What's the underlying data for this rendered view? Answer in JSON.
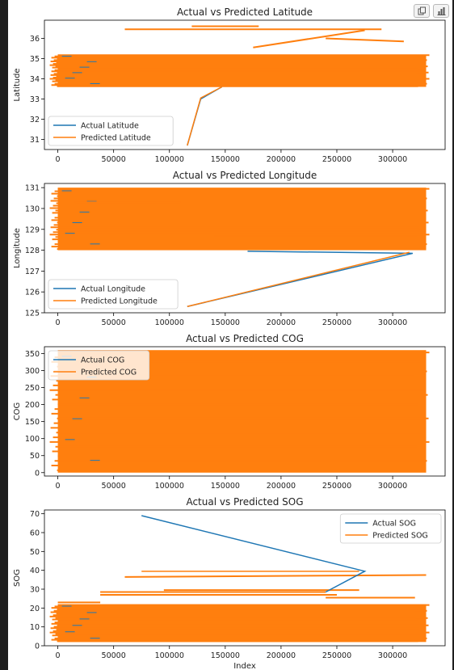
{
  "toolbar": {
    "icons": [
      "copy-icon",
      "chart-icon"
    ]
  },
  "colors": {
    "actual": "#1f77b4",
    "predicted": "#ff7f0e"
  },
  "chart_data": [
    {
      "type": "line",
      "title": "Actual vs Predicted Latitude",
      "xlabel": "",
      "ylabel": "Latitude",
      "xlim": [
        -12000,
        347000
      ],
      "ylim": [
        30.5,
        36.9
      ],
      "xticks": [
        0,
        50000,
        100000,
        150000,
        200000,
        250000,
        300000
      ],
      "yticks": [
        31,
        32,
        33,
        34,
        35,
        36
      ],
      "legend": "lower-left",
      "grid": false,
      "band": {
        "x": [
          0,
          330000
        ],
        "y": [
          33.6,
          35.2
        ]
      },
      "series": [
        {
          "name": "Actual Latitude",
          "x": [
            116000,
            128000,
            147000
          ],
          "y": [
            30.7,
            33.0,
            33.6
          ]
        },
        {
          "name": "Predicted Latitude",
          "x": [
            116000,
            128000,
            147000
          ],
          "y": [
            30.7,
            33.05,
            33.6
          ]
        }
      ],
      "extra_lines": [
        [
          60000,
          36.45,
          290000,
          36.45
        ],
        [
          120000,
          36.6,
          180000,
          36.6
        ],
        [
          240000,
          36.0,
          310000,
          35.85
        ],
        [
          175000,
          35.55,
          275000,
          36.4
        ],
        [
          20000,
          33.7,
          170000,
          33.7
        ],
        [
          150000,
          34.1,
          180000,
          34.1
        ]
      ]
    },
    {
      "type": "line",
      "title": "Actual vs Predicted Longitude",
      "xlabel": "",
      "ylabel": "Longitude",
      "xlim": [
        -12000,
        347000
      ],
      "ylim": [
        125.0,
        131.2
      ],
      "xticks": [
        0,
        50000,
        100000,
        150000,
        200000,
        250000,
        300000
      ],
      "yticks": [
        125,
        126,
        127,
        128,
        129,
        130,
        131
      ],
      "legend": "lower-left",
      "grid": false,
      "band": {
        "x": [
          0,
          330000
        ],
        "y": [
          128.0,
          131.0
        ]
      },
      "series": [
        {
          "name": "Actual Longitude",
          "x": [
            116000,
            318000,
            170000
          ],
          "y": [
            125.3,
            127.85,
            127.95
          ]
        },
        {
          "name": "Predicted Longitude",
          "x": [
            116000,
            315000
          ],
          "y": [
            125.3,
            127.9
          ]
        }
      ],
      "extra_lines": [
        [
          15000,
          130.3,
          110000,
          130.3
        ],
        [
          50000,
          130.1,
          200000,
          130.1
        ],
        [
          0,
          128.7,
          140000,
          128.7
        ]
      ]
    },
    {
      "type": "line",
      "title": "Actual vs Predicted COG",
      "xlabel": "",
      "ylabel": "COG",
      "xlim": [
        -12000,
        347000
      ],
      "ylim": [
        -10,
        370
      ],
      "xticks": [
        0,
        50000,
        100000,
        150000,
        200000,
        250000,
        300000
      ],
      "yticks": [
        0,
        50,
        100,
        150,
        200,
        250,
        300,
        350
      ],
      "legend": "upper-left",
      "grid": false,
      "band": {
        "x": [
          0,
          330000
        ],
        "y": [
          0,
          360
        ]
      },
      "series": [
        {
          "name": "Actual COG",
          "x": [],
          "y": []
        },
        {
          "name": "Predicted COG",
          "x": [],
          "y": []
        }
      ],
      "extra_lines": []
    },
    {
      "type": "line",
      "title": "Actual vs Predicted SOG",
      "xlabel": "Index",
      "ylabel": "SOG",
      "xlim": [
        -12000,
        347000
      ],
      "ylim": [
        0,
        72
      ],
      "xticks": [
        0,
        50000,
        100000,
        150000,
        200000,
        250000,
        300000
      ],
      "yticks": [
        0,
        10,
        20,
        30,
        40,
        50,
        60,
        70
      ],
      "legend": "upper-right",
      "grid": false,
      "band": {
        "x": [
          0,
          330000
        ],
        "y": [
          2,
          22
        ]
      },
      "series": [
        {
          "name": "Actual SOG",
          "x": [
            75000,
            275000,
            240000
          ],
          "y": [
            69,
            39.5,
            28.5
          ]
        },
        {
          "name": "Predicted SOG",
          "x": [
            75000,
            270000
          ],
          "y": [
            39.5,
            39.5
          ]
        }
      ],
      "extra_lines": [
        [
          38000,
          28.5,
          240000,
          28.5
        ],
        [
          95000,
          29.5,
          270000,
          29.5
        ],
        [
          60000,
          36.5,
          330000,
          37.5
        ],
        [
          0,
          23,
          38000,
          23
        ],
        [
          240000,
          25.5,
          320000,
          25.5
        ],
        [
          38000,
          27,
          250000,
          27
        ]
      ]
    }
  ]
}
